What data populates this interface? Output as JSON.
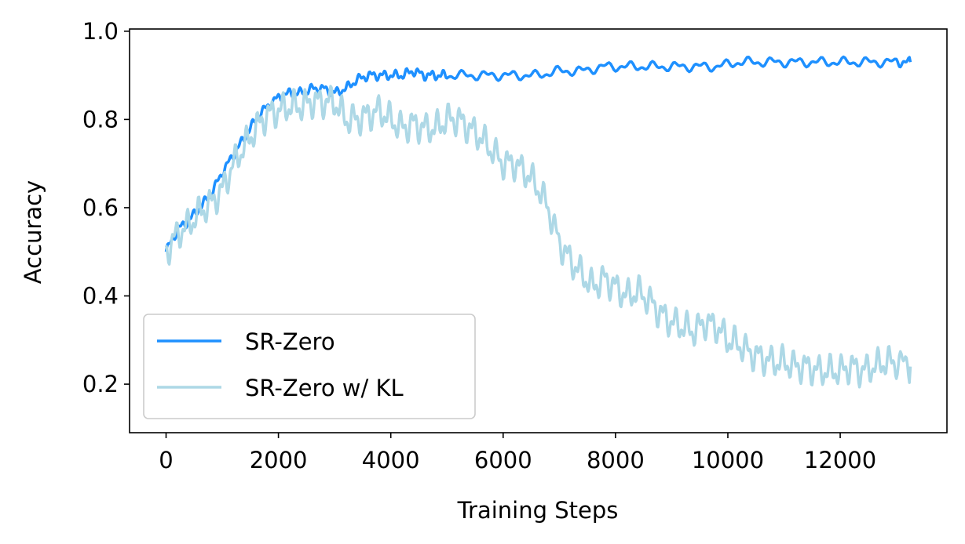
{
  "chart_data": {
    "type": "line",
    "title": "",
    "xlabel": "Training Steps",
    "ylabel": "Accuracy",
    "xlim": [
      -650,
      13900
    ],
    "ylim": [
      0.09,
      1.005
    ],
    "xticks": [
      0,
      2000,
      4000,
      6000,
      8000,
      10000,
      12000
    ],
    "yticks": [
      0.2,
      0.4,
      0.6,
      0.8,
      1.0
    ],
    "xtick_labels": [
      "0",
      "2000",
      "4000",
      "6000",
      "8000",
      "10000",
      "12000"
    ],
    "ytick_labels": [
      "0.2",
      "0.4",
      "0.6",
      "0.8",
      "1.0"
    ],
    "grid": false,
    "legend_position": "lower-left",
    "series": [
      {
        "name": "SR-Zero",
        "color": "#1e90ff",
        "x": [
          0,
          200,
          400,
          600,
          800,
          1000,
          1200,
          1400,
          1600,
          1800,
          2000,
          2200,
          2400,
          2600,
          2800,
          3000,
          3200,
          3400,
          3600,
          3800,
          4000,
          4200,
          4400,
          4600,
          4800,
          5000,
          5400,
          5800,
          6200,
          6600,
          7000,
          7400,
          7800,
          8200,
          8600,
          9000,
          9400,
          9800,
          10200,
          10600,
          11000,
          11400,
          11800,
          12200,
          12600,
          13000,
          13250
        ],
        "y": [
          0.5,
          0.55,
          0.57,
          0.6,
          0.63,
          0.68,
          0.72,
          0.76,
          0.8,
          0.83,
          0.85,
          0.86,
          0.86,
          0.87,
          0.87,
          0.86,
          0.87,
          0.89,
          0.9,
          0.9,
          0.9,
          0.9,
          0.91,
          0.9,
          0.9,
          0.9,
          0.9,
          0.9,
          0.9,
          0.9,
          0.91,
          0.91,
          0.92,
          0.92,
          0.92,
          0.92,
          0.92,
          0.92,
          0.93,
          0.93,
          0.93,
          0.93,
          0.93,
          0.93,
          0.93,
          0.93,
          0.93
        ]
      },
      {
        "name": "SR-Zero w/ KL",
        "color": "#add8e6",
        "x": [
          0,
          200,
          400,
          600,
          800,
          1000,
          1200,
          1400,
          1600,
          1800,
          2000,
          2200,
          2400,
          2600,
          2800,
          3000,
          3200,
          3400,
          3600,
          3800,
          4000,
          4200,
          4400,
          4600,
          4800,
          5000,
          5200,
          5400,
          5600,
          5800,
          6000,
          6200,
          6400,
          6600,
          6800,
          7000,
          7200,
          7400,
          7600,
          7800,
          8000,
          8200,
          8400,
          8600,
          8800,
          9000,
          9200,
          9400,
          9600,
          9800,
          10000,
          10200,
          10400,
          10600,
          10800,
          11000,
          11200,
          11400,
          11600,
          11800,
          12000,
          12200,
          12400,
          12600,
          12800,
          13000,
          13250
        ],
        "y": [
          0.5,
          0.54,
          0.56,
          0.59,
          0.61,
          0.64,
          0.7,
          0.74,
          0.78,
          0.81,
          0.82,
          0.83,
          0.83,
          0.84,
          0.84,
          0.84,
          0.8,
          0.8,
          0.81,
          0.82,
          0.8,
          0.78,
          0.79,
          0.78,
          0.78,
          0.8,
          0.8,
          0.78,
          0.76,
          0.73,
          0.7,
          0.7,
          0.68,
          0.65,
          0.6,
          0.52,
          0.48,
          0.45,
          0.42,
          0.44,
          0.42,
          0.4,
          0.41,
          0.39,
          0.36,
          0.34,
          0.33,
          0.32,
          0.34,
          0.33,
          0.3,
          0.29,
          0.27,
          0.26,
          0.25,
          0.25,
          0.24,
          0.24,
          0.23,
          0.23,
          0.23,
          0.24,
          0.23,
          0.24,
          0.25,
          0.25,
          0.24
        ]
      }
    ]
  }
}
